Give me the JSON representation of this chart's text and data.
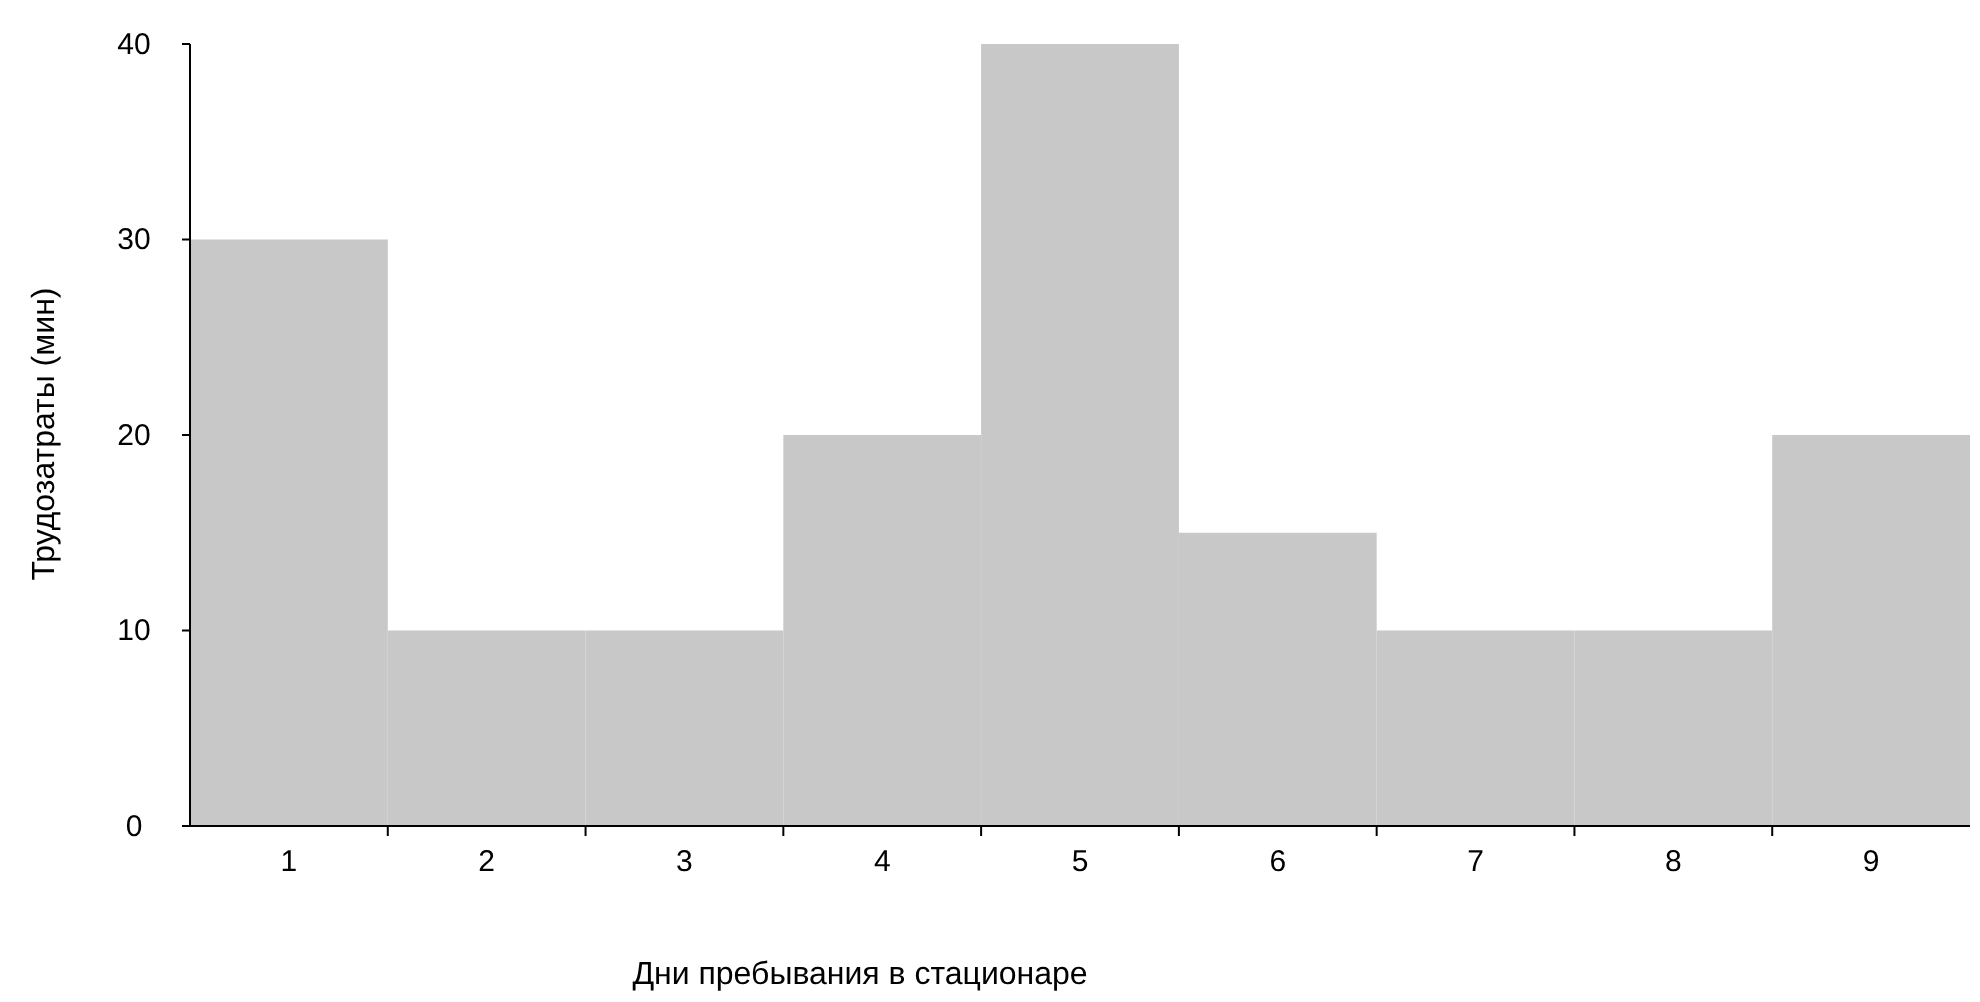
{
  "chart_data": {
    "type": "bar",
    "xlabel": "Дни пребывания в стационаре",
    "ylabel": "Трудозатраты (мин)",
    "categories": [
      "1",
      "2",
      "3",
      "4",
      "5",
      "6",
      "7",
      "8",
      "9"
    ],
    "values": [
      30,
      10,
      10,
      20,
      40,
      15,
      10,
      10,
      20
    ],
    "color": "#c8c8c8",
    "ylim": [
      0,
      40
    ],
    "yticks": [
      0,
      10,
      20,
      30,
      40
    ],
    "grid": false
  }
}
